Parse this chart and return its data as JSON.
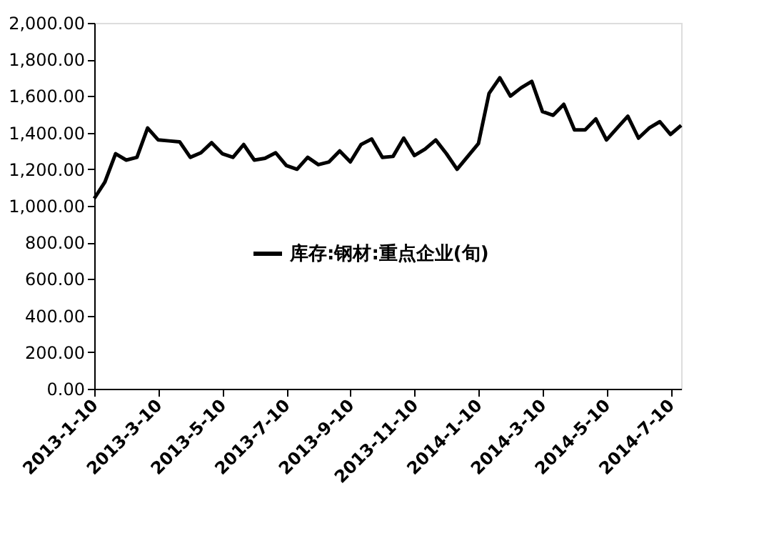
{
  "chart_data": {
    "type": "line",
    "categories": [
      "2013-1-10",
      null,
      null,
      null,
      null,
      null,
      "2013-3-10",
      null,
      null,
      null,
      null,
      null,
      "2013-5-10",
      null,
      null,
      null,
      null,
      null,
      "2013-7-10",
      null,
      null,
      null,
      null,
      null,
      "2013-9-10",
      null,
      null,
      null,
      null,
      null,
      "2013-11-10",
      null,
      null,
      null,
      null,
      null,
      "2014-1-10",
      null,
      null,
      null,
      null,
      null,
      "2014-3-10",
      null,
      null,
      null,
      null,
      null,
      "2014-5-10",
      null,
      null,
      null,
      null,
      null,
      "2014-7-10",
      null
    ],
    "series": [
      {
        "name": "库存:钢材:重点企业(旬)",
        "color": "#000000",
        "values": [
          1040,
          1130,
          1285,
          1250,
          1265,
          1425,
          1360,
          1355,
          1350,
          1265,
          1290,
          1345,
          1285,
          1265,
          1335,
          1250,
          1260,
          1290,
          1220,
          1200,
          1265,
          1225,
          1240,
          1300,
          1240,
          1335,
          1365,
          1265,
          1270,
          1370,
          1275,
          1310,
          1360,
          1285,
          1200,
          1270,
          1340,
          1615,
          1700,
          1600,
          1645,
          1680,
          1515,
          1495,
          1555,
          1415,
          1415,
          1475,
          1360,
          1425,
          1490,
          1370,
          1425,
          1460,
          1390,
          1440
        ]
      }
    ],
    "ylim": [
      0,
      2000
    ],
    "yticks": [
      {
        "value": 0,
        "label": "0.00"
      },
      {
        "value": 200,
        "label": "200.00"
      },
      {
        "value": 400,
        "label": "400.00"
      },
      {
        "value": 600,
        "label": "600.00"
      },
      {
        "value": 800,
        "label": "800.00"
      },
      {
        "value": 1000,
        "label": "1,000.00"
      },
      {
        "value": 1200,
        "label": "1,200.00"
      },
      {
        "value": 1400,
        "label": "1,400.00"
      },
      {
        "value": 1600,
        "label": "1,600.00"
      },
      {
        "value": 1800,
        "label": "1,800.00"
      },
      {
        "value": 2000,
        "label": "2,000.00"
      }
    ],
    "grid": false,
    "legend": "center",
    "marker": "none",
    "line_style": "solid"
  }
}
